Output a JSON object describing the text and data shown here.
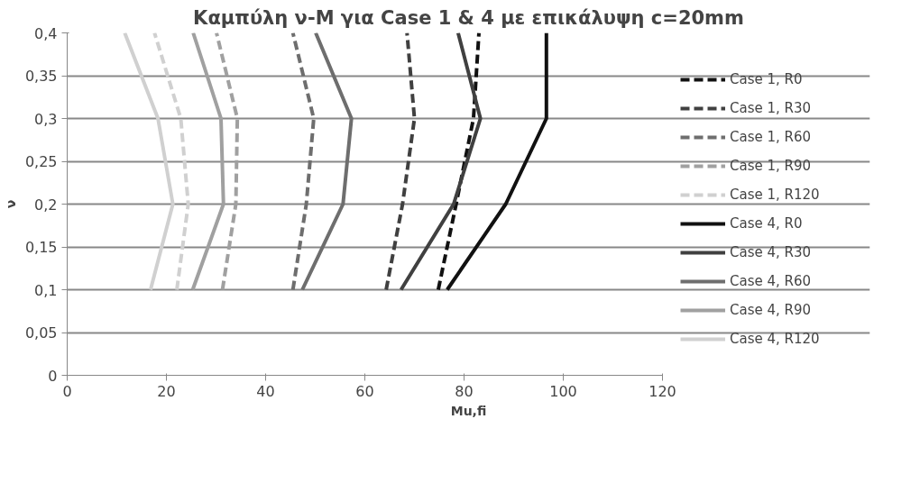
{
  "chart_data": {
    "type": "line",
    "title": "Καμπύλη ν-Μ για Case 1 & 4 με επικάλυψη c=20mm",
    "xlabel": "Mu,fi",
    "ylabel": "ν",
    "xlim": [
      0,
      120
    ],
    "xticks": [
      0,
      20,
      40,
      60,
      80,
      100,
      120
    ],
    "ylim": [
      0,
      0.4
    ],
    "yticks": [
      {
        "value": 0,
        "label": "0"
      },
      {
        "value": 0.05,
        "label": "0,05"
      },
      {
        "value": 0.1,
        "label": "0,1"
      },
      {
        "value": 0.15,
        "label": "0,15"
      },
      {
        "value": 0.2,
        "label": "0,2"
      },
      {
        "value": 0.25,
        "label": "0,25"
      },
      {
        "value": 0.3,
        "label": "0,3"
      },
      {
        "value": 0.35,
        "label": "0,35"
      },
      {
        "value": 0.4,
        "label": "0,4"
      }
    ],
    "grid": "y",
    "legend": "right",
    "marker": "none",
    "series": [
      {
        "name": "Case 1, R0",
        "color": "#111111",
        "line_style": "dashed",
        "x": [
          74.8,
          78.4,
          81.9,
          83.0
        ],
        "values": [
          0.1,
          0.2,
          0.3,
          0.4
        ]
      },
      {
        "name": "Case 1, R30",
        "color": "#404040",
        "line_style": "dashed",
        "x": [
          64.3,
          67.6,
          70.0,
          68.5
        ],
        "values": [
          0.1,
          0.2,
          0.3,
          0.4
        ]
      },
      {
        "name": "Case 1, R60",
        "color": "#6e6e6e",
        "line_style": "dashed",
        "x": [
          45.5,
          48.2,
          49.7,
          45.5
        ],
        "values": [
          0.1,
          0.2,
          0.3,
          0.4
        ]
      },
      {
        "name": "Case 1, R90",
        "color": "#a0a0a0",
        "line_style": "dashed",
        "x": [
          31.3,
          34.0,
          34.3,
          30.1
        ],
        "values": [
          0.1,
          0.2,
          0.3,
          0.4
        ]
      },
      {
        "name": "Case 1, R120",
        "color": "#d0d0d0",
        "line_style": "dashed",
        "x": [
          22.1,
          24.4,
          22.9,
          17.6
        ],
        "values": [
          0.1,
          0.2,
          0.3,
          0.4
        ]
      },
      {
        "name": "Case 4, R0",
        "color": "#111111",
        "line_style": "solid",
        "x": [
          76.6,
          88.4,
          96.6,
          96.6
        ],
        "values": [
          0.1,
          0.2,
          0.3,
          0.4
        ]
      },
      {
        "name": "Case 4, R30",
        "color": "#404040",
        "line_style": "solid",
        "x": [
          67.3,
          77.9,
          83.3,
          78.8
        ],
        "values": [
          0.1,
          0.2,
          0.3,
          0.4
        ]
      },
      {
        "name": "Case 4, R60",
        "color": "#6e6e6e",
        "line_style": "solid",
        "x": [
          47.4,
          55.6,
          57.3,
          50.1
        ],
        "values": [
          0.1,
          0.2,
          0.3,
          0.4
        ]
      },
      {
        "name": "Case 4, R90",
        "color": "#a0a0a0",
        "line_style": "solid",
        "x": [
          25.3,
          31.5,
          31.0,
          25.4
        ],
        "values": [
          0.1,
          0.2,
          0.3,
          0.4
        ]
      },
      {
        "name": "Case 4, R120",
        "color": "#d0d0d0",
        "line_style": "solid",
        "x": [
          16.8,
          21.3,
          18.3,
          11.6
        ],
        "values": [
          0.1,
          0.2,
          0.3,
          0.4
        ]
      }
    ]
  }
}
